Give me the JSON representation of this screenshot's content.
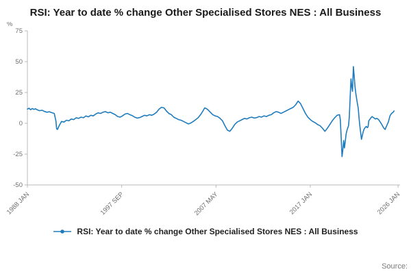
{
  "chart_data": {
    "type": "line",
    "title": "RSI: Year to date % change Other Specialised Stores NES : All Business",
    "xlabel": "",
    "ylabel": "%",
    "ylim": [
      -50,
      75
    ],
    "xlim": [
      1988.0,
      2026.2
    ],
    "grid": false,
    "legend_position": "bottom",
    "y_ticks": [
      75,
      50,
      25,
      0,
      -25,
      -50
    ],
    "x_ticks": [
      {
        "label": "1988 JAN",
        "x": 1988.0
      },
      {
        "label": "1997 SEP",
        "x": 1997.667
      },
      {
        "label": "2007 MAY",
        "x": 2007.333
      },
      {
        "label": "2017 JAN",
        "x": 2017.0
      },
      {
        "label": "2026 JAN",
        "x": 2026.0
      }
    ],
    "series": [
      {
        "name": "RSI: Year to date % change Other Specialised Stores NES : All Business",
        "color": "#1e7cbe",
        "points": [
          [
            1988.0,
            11.5
          ],
          [
            1988.17,
            12.2
          ],
          [
            1988.33,
            11.0
          ],
          [
            1988.5,
            12.0
          ],
          [
            1988.67,
            11.3
          ],
          [
            1988.83,
            11.8
          ],
          [
            1989.0,
            11.0
          ],
          [
            1989.25,
            10.2
          ],
          [
            1989.5,
            10.6
          ],
          [
            1989.75,
            9.6
          ],
          [
            1990.0,
            9.0
          ],
          [
            1990.25,
            9.4
          ],
          [
            1990.5,
            8.6
          ],
          [
            1990.75,
            8.0
          ],
          [
            1990.92,
            2.0
          ],
          [
            1991.0,
            -4.5
          ],
          [
            1991.08,
            -5.0
          ],
          [
            1991.25,
            -2.0
          ],
          [
            1991.5,
            1.5
          ],
          [
            1991.75,
            1.0
          ],
          [
            1992.0,
            2.5
          ],
          [
            1992.25,
            2.0
          ],
          [
            1992.5,
            3.5
          ],
          [
            1992.75,
            3.0
          ],
          [
            1993.0,
            4.5
          ],
          [
            1993.25,
            4.0
          ],
          [
            1993.5,
            5.0
          ],
          [
            1993.75,
            4.5
          ],
          [
            1994.0,
            6.0
          ],
          [
            1994.25,
            5.2
          ],
          [
            1994.5,
            6.5
          ],
          [
            1994.75,
            6.0
          ],
          [
            1995.0,
            7.5
          ],
          [
            1995.25,
            8.5
          ],
          [
            1995.5,
            8.0
          ],
          [
            1995.75,
            9.0
          ],
          [
            1996.0,
            9.5
          ],
          [
            1996.25,
            8.5
          ],
          [
            1996.5,
            9.0
          ],
          [
            1996.75,
            8.0
          ],
          [
            1997.0,
            7.0
          ],
          [
            1997.25,
            5.5
          ],
          [
            1997.5,
            5.0
          ],
          [
            1997.75,
            6.0
          ],
          [
            1998.0,
            7.5
          ],
          [
            1998.25,
            8.0
          ],
          [
            1998.5,
            7.0
          ],
          [
            1998.75,
            6.2
          ],
          [
            1999.0,
            5.0
          ],
          [
            1999.25,
            4.2
          ],
          [
            1999.5,
            4.6
          ],
          [
            1999.75,
            5.5
          ],
          [
            2000.0,
            6.5
          ],
          [
            2000.25,
            6.0
          ],
          [
            2000.5,
            7.0
          ],
          [
            2000.75,
            6.5
          ],
          [
            2001.0,
            7.5
          ],
          [
            2001.25,
            9.0
          ],
          [
            2001.5,
            11.5
          ],
          [
            2001.75,
            13.0
          ],
          [
            2002.0,
            12.5
          ],
          [
            2002.25,
            10.0
          ],
          [
            2002.5,
            8.0
          ],
          [
            2002.75,
            7.0
          ],
          [
            2003.0,
            5.0
          ],
          [
            2003.25,
            4.0
          ],
          [
            2003.5,
            3.0
          ],
          [
            2003.75,
            2.5
          ],
          [
            2004.0,
            1.5
          ],
          [
            2004.25,
            0.5
          ],
          [
            2004.5,
            -0.5
          ],
          [
            2004.75,
            0.2
          ],
          [
            2005.0,
            1.5
          ],
          [
            2005.25,
            3.0
          ],
          [
            2005.5,
            4.5
          ],
          [
            2005.75,
            7.0
          ],
          [
            2006.0,
            10.0
          ],
          [
            2006.17,
            12.5
          ],
          [
            2006.33,
            12.0
          ],
          [
            2006.5,
            11.0
          ],
          [
            2006.75,
            9.0
          ],
          [
            2007.0,
            7.0
          ],
          [
            2007.25,
            6.0
          ],
          [
            2007.5,
            5.5
          ],
          [
            2007.75,
            4.0
          ],
          [
            2008.0,
            2.0
          ],
          [
            2008.25,
            -2.0
          ],
          [
            2008.5,
            -5.5
          ],
          [
            2008.75,
            -6.5
          ],
          [
            2009.0,
            -4.0
          ],
          [
            2009.25,
            -1.0
          ],
          [
            2009.5,
            1.0
          ],
          [
            2009.75,
            2.0
          ],
          [
            2010.0,
            3.0
          ],
          [
            2010.25,
            4.0
          ],
          [
            2010.5,
            3.5
          ],
          [
            2010.75,
            4.5
          ],
          [
            2011.0,
            5.0
          ],
          [
            2011.25,
            4.2
          ],
          [
            2011.5,
            4.6
          ],
          [
            2011.75,
            5.5
          ],
          [
            2012.0,
            5.0
          ],
          [
            2012.25,
            6.0
          ],
          [
            2012.5,
            5.5
          ],
          [
            2012.75,
            6.5
          ],
          [
            2013.0,
            7.0
          ],
          [
            2013.25,
            8.5
          ],
          [
            2013.5,
            9.5
          ],
          [
            2013.75,
            9.0
          ],
          [
            2014.0,
            8.0
          ],
          [
            2014.25,
            9.0
          ],
          [
            2014.5,
            10.0
          ],
          [
            2014.75,
            11.0
          ],
          [
            2015.0,
            12.0
          ],
          [
            2015.25,
            13.0
          ],
          [
            2015.5,
            15.0
          ],
          [
            2015.75,
            18.0
          ],
          [
            2016.0,
            16.0
          ],
          [
            2016.25,
            12.0
          ],
          [
            2016.5,
            8.0
          ],
          [
            2016.75,
            5.0
          ],
          [
            2017.0,
            3.0
          ],
          [
            2017.25,
            1.5
          ],
          [
            2017.5,
            0.5
          ],
          [
            2017.75,
            -1.0
          ],
          [
            2018.0,
            -2.0
          ],
          [
            2018.25,
            -4.0
          ],
          [
            2018.5,
            -6.5
          ],
          [
            2018.75,
            -4.0
          ],
          [
            2019.0,
            -1.0
          ],
          [
            2019.25,
            2.0
          ],
          [
            2019.5,
            4.5
          ],
          [
            2019.75,
            6.5
          ],
          [
            2020.0,
            7.0
          ],
          [
            2020.08,
            3.0
          ],
          [
            2020.17,
            -12.0
          ],
          [
            2020.25,
            -27.0
          ],
          [
            2020.33,
            -22.0
          ],
          [
            2020.42,
            -14.0
          ],
          [
            2020.5,
            -20.0
          ],
          [
            2020.58,
            -15.0
          ],
          [
            2020.67,
            -9.0
          ],
          [
            2020.75,
            -6.0
          ],
          [
            2020.83,
            -4.0
          ],
          [
            2020.92,
            -2.0
          ],
          [
            2021.0,
            5.0
          ],
          [
            2021.08,
            20.0
          ],
          [
            2021.17,
            36.0
          ],
          [
            2021.25,
            30.0
          ],
          [
            2021.33,
            26.0
          ],
          [
            2021.42,
            46.0
          ],
          [
            2021.5,
            38.0
          ],
          [
            2021.58,
            30.0
          ],
          [
            2021.67,
            24.0
          ],
          [
            2021.75,
            20.0
          ],
          [
            2021.83,
            16.0
          ],
          [
            2021.92,
            12.0
          ],
          [
            2022.0,
            4.0
          ],
          [
            2022.08,
            -2.0
          ],
          [
            2022.17,
            -8.0
          ],
          [
            2022.25,
            -13.0
          ],
          [
            2022.33,
            -10.0
          ],
          [
            2022.42,
            -7.0
          ],
          [
            2022.5,
            -5.0
          ],
          [
            2022.58,
            -4.0
          ],
          [
            2022.67,
            -3.0
          ],
          [
            2022.75,
            -2.5
          ],
          [
            2022.83,
            -3.5
          ],
          [
            2022.92,
            -3.0
          ],
          [
            2023.0,
            2.0
          ],
          [
            2023.17,
            4.0
          ],
          [
            2023.33,
            5.5
          ],
          [
            2023.5,
            4.5
          ],
          [
            2023.67,
            3.5
          ],
          [
            2023.83,
            4.0
          ],
          [
            2024.0,
            3.0
          ],
          [
            2024.17,
            1.0
          ],
          [
            2024.33,
            -1.0
          ],
          [
            2024.5,
            -3.5
          ],
          [
            2024.67,
            -5.0
          ],
          [
            2024.83,
            -2.0
          ],
          [
            2025.0,
            1.0
          ],
          [
            2025.17,
            6.0
          ],
          [
            2025.33,
            8.0
          ],
          [
            2025.5,
            9.0
          ],
          [
            2025.58,
            10.0
          ]
        ]
      }
    ]
  },
  "legend": {
    "label": "RSI: Year to date % change Other Specialised Stores NES : All Business"
  },
  "footer": {
    "source": "Source:"
  },
  "colors": {
    "line": "#1e7cbe",
    "axis": "#b9b9b9",
    "tick_text": "#6e6e6e",
    "title_text": "#1a1a1a"
  }
}
